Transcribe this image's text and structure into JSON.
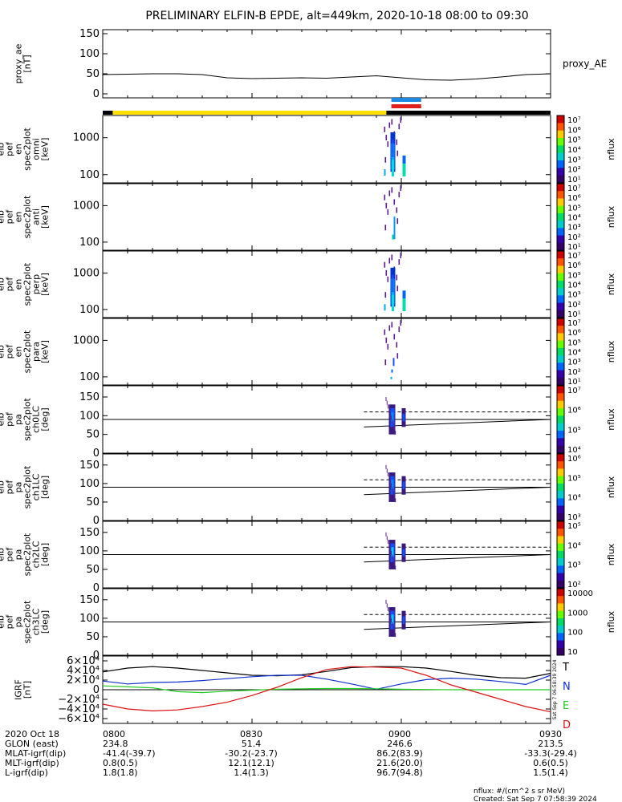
{
  "title": "PRELIMINARY ELFIN-B EPDE, alt=449km, 2020-10-18 08:00 to 09:30",
  "colors": {
    "yellow_bar": "#FFE000",
    "blue_bar": "#1E88E5",
    "red_bar": "#E0201B",
    "grf_T": "#000000",
    "grf_N": "#1030D0",
    "grf_E": "#22CC22",
    "grf_D": "#DD1010"
  },
  "chart_data": [
    {
      "type": "line",
      "panel": "proxy_ae",
      "ylabel": [
        "proxy_ae",
        "[nT]"
      ],
      "yticks": [
        "150",
        "100",
        "50",
        "0"
      ],
      "ylim": [
        0,
        150
      ],
      "series_label": "proxy_AE",
      "x": [
        0,
        5,
        10,
        15,
        20,
        25,
        30,
        35,
        40,
        45,
        50,
        55,
        60,
        65,
        70,
        75,
        80,
        85,
        90
      ],
      "values": [
        48,
        49,
        50,
        50,
        48,
        40,
        38,
        39,
        40,
        39,
        42,
        45,
        40,
        35,
        34,
        37,
        42,
        48,
        50
      ]
    },
    {
      "type": "heatmap",
      "panel": "spec_omni",
      "ylabel": [
        "elb",
        "pef",
        "en",
        "spec2plot",
        "omni",
        "[keV]"
      ],
      "yticks": [
        "1000",
        "100"
      ],
      "colorbar_ticks": [
        "10⁷",
        "10⁶",
        "10⁵",
        "10⁴",
        "10³",
        "10²",
        "10¹"
      ],
      "colorbar_label": "nflux"
    },
    {
      "type": "heatmap",
      "panel": "spec_anti",
      "ylabel": [
        "elb",
        "pef",
        "en",
        "spec2plot",
        "anti",
        "[keV]"
      ],
      "yticks": [
        "1000",
        "100"
      ],
      "colorbar_ticks": [
        "10⁷",
        "10⁶",
        "10⁵",
        "10⁴",
        "10³",
        "10²",
        "10¹"
      ],
      "colorbar_label": "nflux"
    },
    {
      "type": "heatmap",
      "panel": "spec_perp",
      "ylabel": [
        "elb",
        "pef",
        "en",
        "spec2plot",
        "perp",
        "[keV]"
      ],
      "yticks": [
        "1000",
        "100"
      ],
      "colorbar_ticks": [
        "10⁷",
        "10⁶",
        "10⁵",
        "10⁴",
        "10³",
        "10²",
        "10¹"
      ],
      "colorbar_label": "nflux"
    },
    {
      "type": "heatmap",
      "panel": "spec_para",
      "ylabel": [
        "elb",
        "pef",
        "en",
        "spec2plot",
        "para",
        "[keV]"
      ],
      "yticks": [
        "1000",
        "100"
      ],
      "colorbar_ticks": [
        "10⁷",
        "10⁶",
        "10⁵",
        "10⁴",
        "10³",
        "10²",
        "10¹"
      ],
      "colorbar_label": "nflux"
    },
    {
      "type": "heatmap",
      "panel": "pa_ch0",
      "ylabel": [
        "elb",
        "pef",
        "pa",
        "spec2plot",
        "ch0LC",
        "[deg]"
      ],
      "yticks": [
        "150",
        "100",
        "50",
        "0"
      ],
      "colorbar_ticks": [
        "10⁷",
        "10⁶",
        "10⁵",
        "10⁴"
      ],
      "colorbar_label": "nflux"
    },
    {
      "type": "heatmap",
      "panel": "pa_ch1",
      "ylabel": [
        "elb",
        "pef",
        "pa",
        "spec2plot",
        "ch1LC",
        "[deg]"
      ],
      "yticks": [
        "150",
        "100",
        "50",
        "0"
      ],
      "colorbar_ticks": [
        "10⁶",
        "10⁵",
        "10⁴",
        "10³"
      ],
      "colorbar_label": "nflux"
    },
    {
      "type": "heatmap",
      "panel": "pa_ch2",
      "ylabel": [
        "elb",
        "pef",
        "pa",
        "spec2plot",
        "ch2LC",
        "[deg]"
      ],
      "yticks": [
        "150",
        "100",
        "50",
        "0"
      ],
      "colorbar_ticks": [
        "10⁵",
        "10⁴",
        "10³",
        "10²"
      ],
      "colorbar_label": "nflux"
    },
    {
      "type": "heatmap",
      "panel": "pa_ch3",
      "ylabel": [
        "elb",
        "pef",
        "pa",
        "spec2plot",
        "ch3LC",
        "[deg]"
      ],
      "yticks": [
        "150",
        "100",
        "50",
        "0"
      ],
      "colorbar_ticks": [
        "10000",
        "1000",
        "100",
        "10"
      ],
      "colorbar_label": "nflux"
    },
    {
      "type": "line",
      "panel": "igrf",
      "ylabel": [
        "IGRF",
        "[nT]"
      ],
      "yticks": [
        "6×10⁴",
        "4×10⁴",
        "2×10⁴",
        "0",
        "−2×10⁴",
        "−4×10⁴",
        "−6×10⁴"
      ],
      "ylim": [
        -60000,
        60000
      ],
      "legend": [
        "T",
        "N",
        "E",
        "D"
      ],
      "x": [
        0,
        5,
        10,
        15,
        20,
        25,
        30,
        35,
        40,
        45,
        50,
        55,
        60,
        65,
        70,
        75,
        80,
        85,
        90
      ],
      "series": [
        {
          "name": "T",
          "values": [
            37000,
            45000,
            48000,
            45000,
            40000,
            35000,
            30000,
            29000,
            31000,
            38000,
            46000,
            48000,
            48000,
            45000,
            38000,
            30000,
            25000,
            24000,
            34000
          ]
        },
        {
          "name": "N",
          "values": [
            18000,
            12000,
            15000,
            16000,
            19000,
            23000,
            27000,
            30000,
            30000,
            22000,
            12000,
            1000,
            12000,
            21000,
            24000,
            22000,
            17000,
            11000,
            30000
          ]
        },
        {
          "name": "E",
          "values": [
            8000,
            6000,
            4000,
            -4000,
            -6000,
            -3000,
            -1000,
            1000,
            2000,
            2500,
            2500,
            2000,
            1000,
            500,
            0,
            0,
            0,
            0,
            0
          ]
        },
        {
          "name": "D",
          "values": [
            -30000,
            -40000,
            -44000,
            -42000,
            -35000,
            -26000,
            -12000,
            5000,
            25000,
            42000,
            48000,
            47000,
            45000,
            30000,
            10000,
            -5000,
            -20000,
            -35000,
            -46000
          ]
        }
      ]
    }
  ],
  "side_stamp": "Sat Sep 7 06:58:39 2024",
  "xticks": [
    "0800",
    "0830",
    "0900",
    "0930"
  ],
  "footer_rows": [
    {
      "label": "2020 Oct 18",
      "values": [
        "0800",
        "0830",
        "0900",
        "0930"
      ]
    },
    {
      "label": "GLON (east)",
      "values": [
        "234.8",
        "51.4",
        "246.6",
        "213.5"
      ]
    },
    {
      "label": "MLAT-igrf(dip)",
      "values": [
        "-41.4(-39.7)",
        "-30.2(-23.7)",
        "86.2(83.9)",
        "-33.3(-29.4)"
      ]
    },
    {
      "label": "MLT-igrf(dip)",
      "values": [
        "0.8(0.5)",
        "12.1(12.1)",
        "21.6(20.0)",
        "0.6(0.5)"
      ]
    },
    {
      "label": "L-igrf(dip)",
      "values": [
        "1.8(1.8)",
        "1.4(1.3)",
        "96.7(94.8)",
        "1.5(1.4)"
      ]
    }
  ],
  "units_note": "nflux: #/(cm^2 s sr MeV)",
  "created": "Created: Sat Sep  7 07:58:39 2024"
}
